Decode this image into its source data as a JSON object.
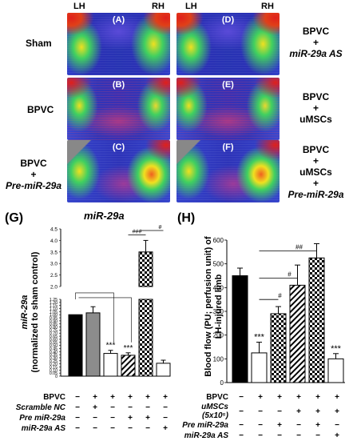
{
  "figure": {
    "hemi_left": "LH",
    "hemi_right": "RH",
    "panels": [
      {
        "tag": "(A)",
        "label_lines": [
          "Sham"
        ],
        "italic_lines": []
      },
      {
        "tag": "(B)",
        "label_lines": [
          "BPVC"
        ],
        "italic_lines": []
      },
      {
        "tag": "(C)",
        "label_lines": [
          "BPVC",
          "+"
        ],
        "italic_lines": [
          "Pre-miR-29a"
        ]
      },
      {
        "tag": "(D)",
        "label_lines": [
          "BPVC",
          "+"
        ],
        "italic_lines": [
          "miR-29a AS"
        ]
      },
      {
        "tag": "(E)",
        "label_lines": [
          "BPVC",
          "+",
          "uMSCs"
        ],
        "italic_lines": []
      },
      {
        "tag": "(F)",
        "label_lines": [
          "BPVC",
          "+",
          "uMSCs",
          "+"
        ],
        "italic_lines": [
          "Pre-miR-29a"
        ]
      }
    ],
    "colors": {
      "red": "#e0201a",
      "yellow": "#f0e020",
      "green": "#40d060",
      "blue": "#2b2fb6"
    }
  },
  "chart_data": [
    {
      "panel_label": "(G)",
      "type": "bar",
      "title": "miR-29a",
      "ylabel_line1": "miR-29a",
      "ylabel_line2": "(normalized to sham control)",
      "broken_axis": true,
      "ylim_lower": [
        0,
        1.25
      ],
      "ylim_upper": [
        2.0,
        4.5
      ],
      "yticks_lower": [
        "0",
        "0.05",
        "0.10",
        "0.15",
        "0.20",
        "0.25",
        "0.30",
        "0.35",
        "0.40",
        "0.45",
        "0.50",
        "0.55",
        "0.60",
        "0.65",
        "0.70",
        "0.75",
        "0.80",
        "0.85",
        "0.90",
        "0.95",
        "1.00",
        "1.05",
        "1.10",
        "1.15",
        "1.20",
        "1.25"
      ],
      "yticks_upper": [
        "2.0",
        "2.5",
        "3.0",
        "3.5",
        "4.0",
        "4.5"
      ],
      "values": [
        1.0,
        1.03,
        0.37,
        0.34,
        3.5,
        0.21
      ],
      "errors": [
        0.0,
        0.1,
        0.05,
        0.04,
        0.5,
        0.05
      ],
      "fills": [
        "black",
        "gray",
        "white",
        "stripe",
        "check",
        "white"
      ],
      "annotations": [
        {
          "bar": 2,
          "text": "***"
        },
        {
          "bar": 3,
          "text": "***"
        }
      ],
      "brackets": [
        {
          "text": "###"
        },
        {
          "text": "#"
        }
      ],
      "table_rows": [
        {
          "label": "BPVC",
          "signs": [
            "−",
            "+",
            "+",
            "+",
            "+",
            "+"
          ]
        },
        {
          "label": "Scramble NC",
          "signs": [
            "−",
            "+",
            "−",
            "−",
            "−",
            "−"
          ]
        },
        {
          "label": "Pre miR-29a",
          "signs": [
            "−",
            "−",
            "−",
            "+",
            "+",
            "−"
          ]
        },
        {
          "label": "miR-29a AS",
          "signs": [
            "−",
            "−",
            "−",
            "−",
            "−",
            "+"
          ]
        }
      ]
    },
    {
      "panel_label": "(H)",
      "type": "bar",
      "ylabel_line1": "Blood flow (PU; perfusion unit) of",
      "ylabel_line2": "LH-injured limb",
      "ylim": [
        0,
        600
      ],
      "yticks": [
        "0",
        "100",
        "200",
        "300",
        "400",
        "500",
        "600"
      ],
      "values": [
        450,
        125,
        290,
        410,
        525,
        100
      ],
      "errors": [
        32,
        45,
        30,
        85,
        60,
        22
      ],
      "fills": [
        "black",
        "white",
        "check",
        "stripe",
        "check",
        "white"
      ],
      "annotations": [
        {
          "bar": 1,
          "text": "***"
        },
        {
          "bar": 5,
          "text": "***"
        }
      ],
      "brackets": [
        {
          "text": "#"
        },
        {
          "text": "#"
        },
        {
          "text": "##"
        }
      ],
      "table_rows": [
        {
          "label": "BPVC",
          "signs": [
            "−",
            "+",
            "+",
            "+",
            "+",
            "+"
          ]
        },
        {
          "label": "uMSCs (5x10⁵)",
          "signs": [
            "−",
            "−",
            "−",
            "+",
            "+",
            "+"
          ]
        },
        {
          "label": "Pre miR-29a",
          "signs": [
            "−",
            "−",
            "+",
            "−",
            "+",
            "−"
          ]
        },
        {
          "label": "miR-29a AS",
          "signs": [
            "−",
            "−",
            "−",
            "−",
            "−",
            "+"
          ]
        }
      ]
    }
  ]
}
